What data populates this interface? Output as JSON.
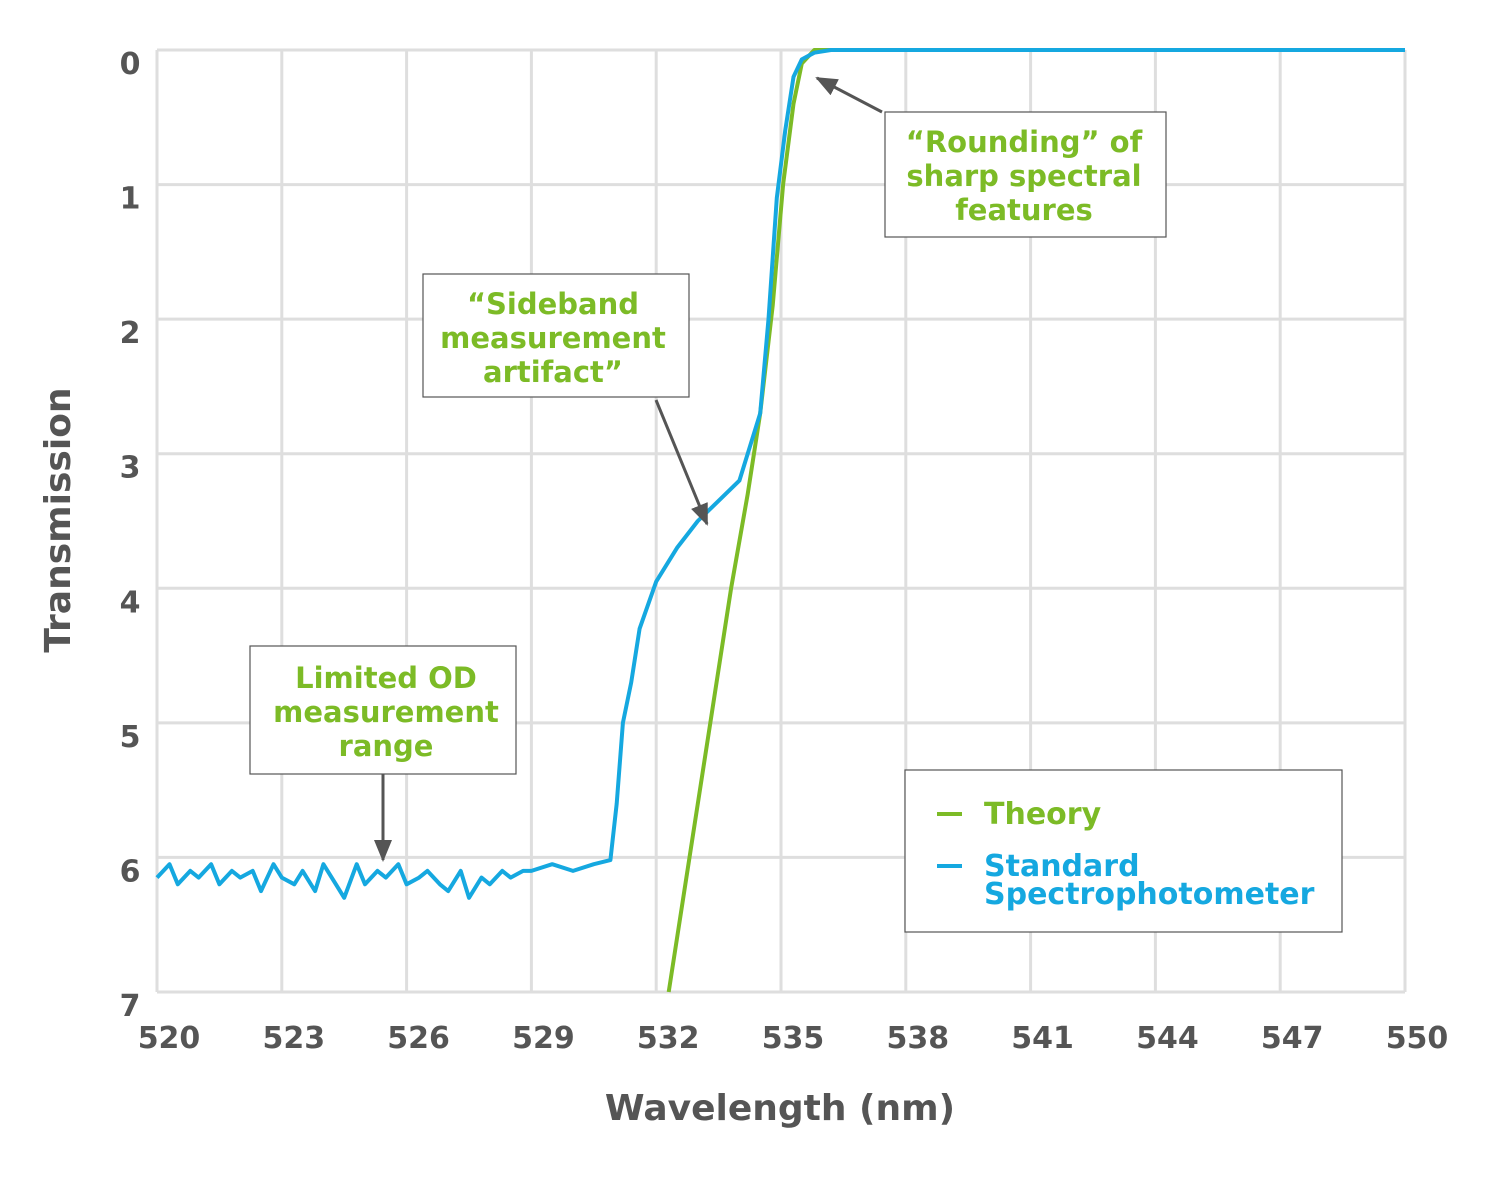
{
  "chart_data": {
    "type": "line",
    "xlabel": "Wavelength (nm)",
    "ylabel": "Transmission",
    "xlim": [
      520,
      550
    ],
    "ylim": [
      0,
      7
    ],
    "y_inverted": true,
    "x_ticks": [
      "520",
      "523",
      "526",
      "529",
      "532",
      "535",
      "538",
      "541",
      "544",
      "547",
      "550"
    ],
    "y_ticks": [
      "0",
      "1",
      "2",
      "3",
      "4",
      "5",
      "6",
      "7"
    ],
    "grid": true,
    "legend_position": "bottom-right",
    "series": [
      {
        "name": "Theory",
        "color": "#7cbb26",
        "x": [
          532.3,
          532.8,
          533.3,
          533.8,
          534.2,
          534.5,
          534.8,
          535.05,
          535.3,
          535.5,
          535.8,
          536.2,
          550
        ],
        "y": [
          7.0,
          6.0,
          5.0,
          4.0,
          3.3,
          2.7,
          1.9,
          1.0,
          0.4,
          0.1,
          0.0,
          0.0,
          0.0
        ]
      },
      {
        "name": "Standard Spectrophotometer",
        "color": "#15a8e0",
        "x": [
          520.0,
          520.3,
          520.5,
          520.8,
          521.0,
          521.3,
          521.5,
          521.8,
          522.0,
          522.3,
          522.5,
          522.8,
          523.0,
          523.3,
          523.5,
          523.8,
          524.0,
          524.3,
          524.5,
          524.8,
          525.0,
          525.3,
          525.5,
          525.8,
          526.0,
          526.3,
          526.5,
          526.8,
          527.0,
          527.3,
          527.5,
          527.8,
          528.0,
          528.3,
          528.5,
          528.8,
          529.0,
          529.5,
          530.0,
          530.5,
          530.9,
          531.05,
          531.2,
          531.4,
          531.6,
          532.0,
          532.5,
          533.0,
          533.5,
          534.0,
          534.5,
          534.7,
          534.9,
          535.1,
          535.3,
          535.5,
          535.8,
          536.2,
          537.0,
          550.0
        ],
        "y": [
          6.15,
          6.05,
          6.2,
          6.1,
          6.15,
          6.05,
          6.2,
          6.1,
          6.15,
          6.1,
          6.25,
          6.05,
          6.15,
          6.2,
          6.1,
          6.25,
          6.05,
          6.2,
          6.3,
          6.05,
          6.2,
          6.1,
          6.15,
          6.05,
          6.2,
          6.15,
          6.1,
          6.2,
          6.25,
          6.1,
          6.3,
          6.15,
          6.2,
          6.1,
          6.15,
          6.1,
          6.1,
          6.05,
          6.1,
          6.05,
          6.02,
          5.6,
          5.0,
          4.7,
          4.3,
          3.95,
          3.7,
          3.5,
          3.35,
          3.2,
          2.7,
          2.0,
          1.1,
          0.6,
          0.2,
          0.07,
          0.02,
          0.0,
          0.0,
          0.0
        ]
      }
    ],
    "annotations": [
      {
        "lines": [
          "“Rounding” of",
          "sharp spectral",
          "features"
        ]
      },
      {
        "lines": [
          "“Sideband",
          "measurement",
          "artifact”"
        ]
      },
      {
        "lines": [
          "Limited OD",
          "measurement",
          "range"
        ]
      }
    ]
  }
}
